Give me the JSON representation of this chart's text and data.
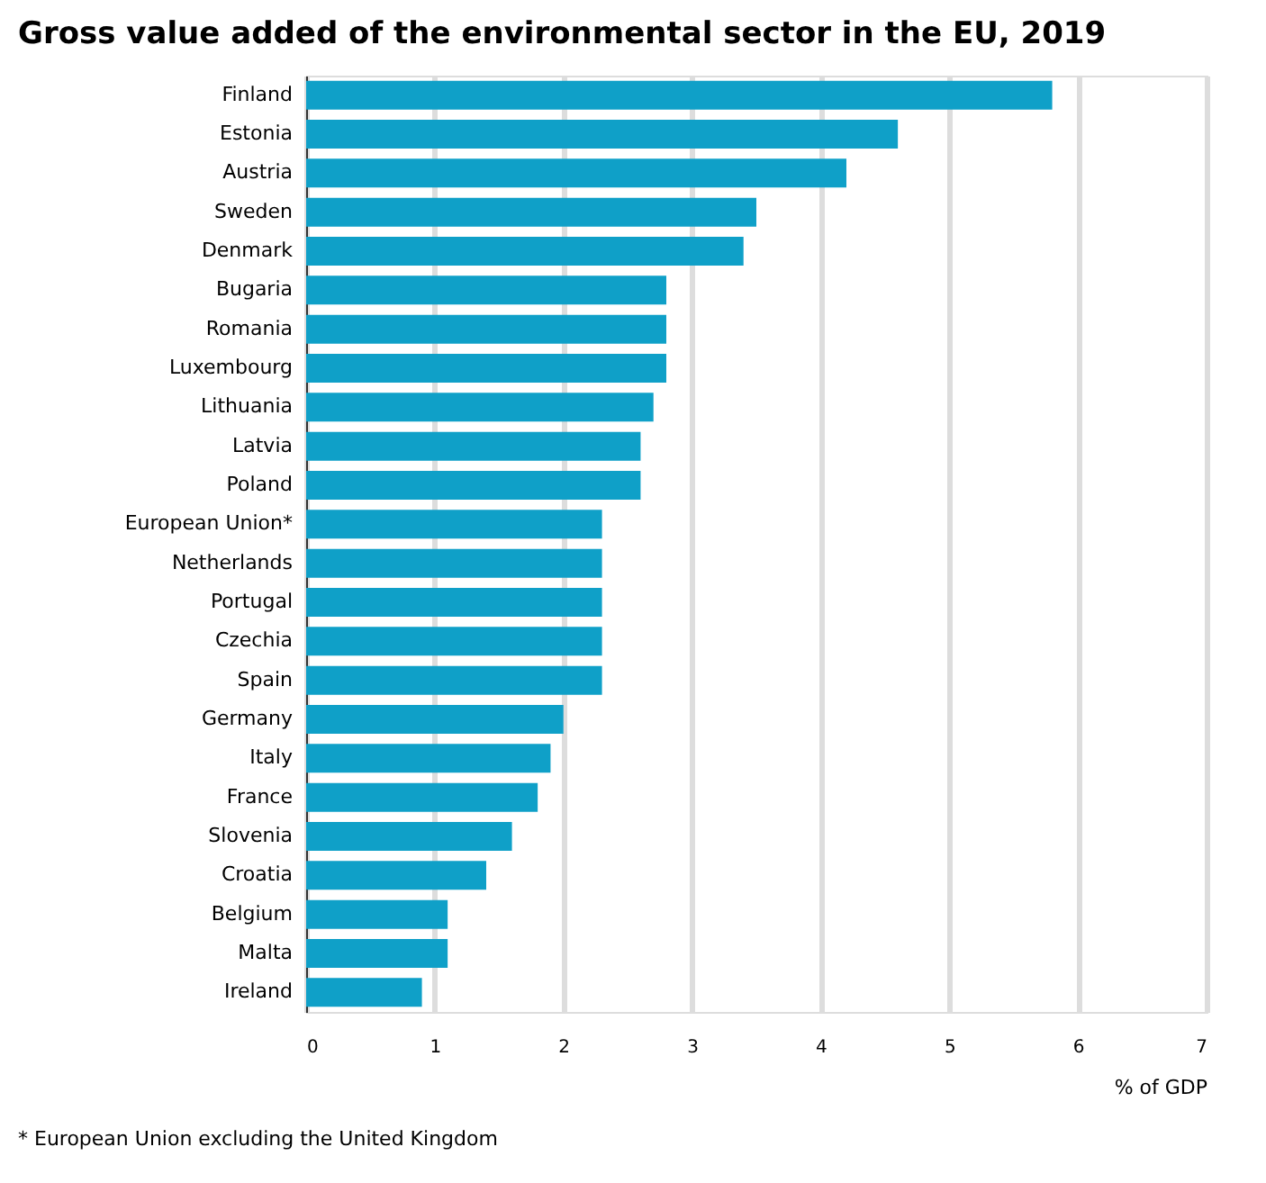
{
  "chart_data": {
    "type": "bar",
    "orientation": "horizontal",
    "title": "Gross value added of the environmental sector in the EU, 2019",
    "xlabel": "% of GDP",
    "categories": [
      "Finland",
      "Estonia",
      "Austria",
      "Sweden",
      "Denmark",
      "Bugaria",
      "Romania",
      "Luxembourg",
      "Lithuania",
      "Latvia",
      "Poland",
      "European Union*",
      "Netherlands",
      "Portugal",
      "Czechia",
      "Spain",
      "Germany",
      "Italy",
      "France",
      "Slovenia",
      "Croatia",
      "Belgium",
      "Malta",
      "Ireland"
    ],
    "values": [
      5.8,
      4.6,
      4.2,
      3.5,
      3.4,
      2.8,
      2.8,
      2.8,
      2.7,
      2.6,
      2.6,
      2.3,
      2.3,
      2.3,
      2.3,
      2.3,
      2.0,
      1.9,
      1.8,
      1.6,
      1.4,
      1.1,
      1.1,
      0.9
    ],
    "color": "#0fa0c8",
    "xlim": [
      0,
      7
    ],
    "xticks": [
      0,
      1,
      2,
      3,
      4,
      5,
      6,
      7
    ],
    "grid": "x",
    "annotations": [
      "* European Union excluding the United Kingdom"
    ]
  }
}
